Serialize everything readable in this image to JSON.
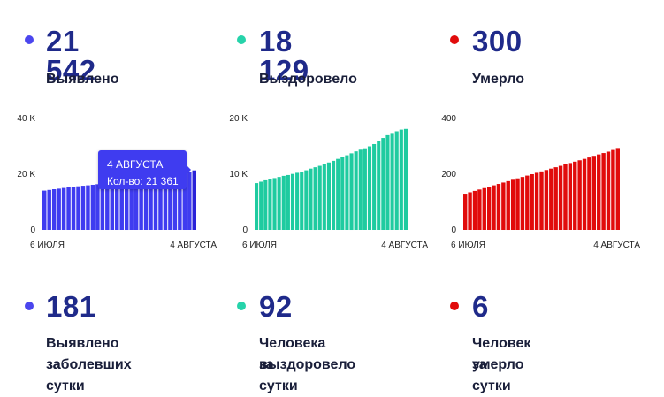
{
  "colors": {
    "blue": "#3f3cf0",
    "teal": "#1fcba0",
    "red": "#e10b0b",
    "text": "#1f2a8a"
  },
  "top": [
    {
      "value": "21 542",
      "label": "Выявлено",
      "color": "#4b46ee"
    },
    {
      "value": "18 129",
      "label": "Выздоровело",
      "color": "#26d3aa"
    },
    {
      "value": "300",
      "label": "Умерло",
      "color": "#e10b0b"
    }
  ],
  "bottom": [
    {
      "value": "181",
      "label_line1": "Выявлено заболевших",
      "label_line2": "за сутки",
      "color": "#4b46ee"
    },
    {
      "value": "92",
      "label_line1": "Человека выздоровело",
      "label_line2": "за сутки",
      "color": "#26d3aa"
    },
    {
      "value": "6",
      "label_line1": "Человек умерло",
      "label_line2": "за сутки",
      "color": "#e10b0b"
    }
  ],
  "tooltip": {
    "date": "4 АВГУСТА",
    "text": "Кол-во: 21 361"
  },
  "chart_data": [
    {
      "type": "bar",
      "color": "#3f3cf0",
      "x_start_label": "6 ИЮЛЯ",
      "x_end_label": "4 АВГУСТА",
      "ylim": [
        0,
        40000
      ],
      "yticks": [
        0,
        20000,
        40000
      ],
      "ytick_labels": [
        "0",
        "20 K",
        "40 K"
      ],
      "values": [
        14100,
        14350,
        14600,
        14800,
        15050,
        15250,
        15450,
        15650,
        15850,
        16000,
        16200,
        16400,
        16600,
        16800,
        16950,
        17150,
        17300,
        17500,
        17700,
        17900,
        18100,
        18350,
        18600,
        18850,
        19100,
        19400,
        19700,
        20000,
        20300,
        20600,
        20900,
        21361
      ],
      "highlight_last": true
    },
    {
      "type": "bar",
      "color": "#1fcba0",
      "x_start_label": "6 ИЮЛЯ",
      "x_end_label": "4 АВГУСТА",
      "ylim": [
        0,
        20000
      ],
      "yticks": [
        0,
        10000,
        20000
      ],
      "ytick_labels": [
        "0",
        "10 K",
        "20 K"
      ],
      "values": [
        8400,
        8650,
        8900,
        9100,
        9300,
        9500,
        9700,
        9850,
        10050,
        10250,
        10450,
        10700,
        11000,
        11250,
        11500,
        11800,
        12100,
        12400,
        12750,
        13050,
        13400,
        13750,
        14100,
        14400,
        14650,
        15000,
        15400,
        16000,
        16500,
        17000,
        17400,
        17700,
        18000,
        18129
      ]
    },
    {
      "type": "bar",
      "color": "#e10b0b",
      "x_start_label": "6 ИЮЛЯ",
      "x_end_label": "4 АВГУСТА",
      "ylim": [
        0,
        400
      ],
      "yticks": [
        0,
        200,
        400
      ],
      "ytick_labels": [
        "0",
        "200",
        "400"
      ],
      "values": [
        130,
        135,
        140,
        145,
        150,
        155,
        160,
        165,
        170,
        175,
        180,
        185,
        190,
        195,
        200,
        205,
        210,
        215,
        220,
        225,
        230,
        235,
        240,
        245,
        250,
        255,
        260,
        266,
        271,
        276,
        281,
        287,
        294
      ]
    }
  ]
}
